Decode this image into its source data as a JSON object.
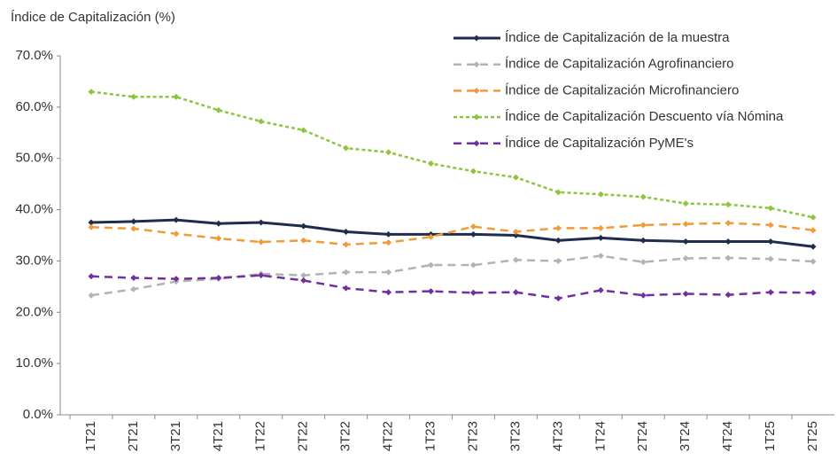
{
  "chart_data": {
    "type": "line",
    "y_axis_title": "Índice de Capitalización (%)",
    "categories": [
      "1T21",
      "2T21",
      "3T21",
      "4T21",
      "1T22",
      "2T22",
      "3T22",
      "4T22",
      "1T23",
      "2T23",
      "3T23",
      "4T23",
      "1T24",
      "2T24",
      "3T24",
      "4T24",
      "1T25",
      "2T25"
    ],
    "series": [
      {
        "name": "Índice de Capitalización de la muestra",
        "color": "#1f2d4d",
        "line_style": "solid",
        "values": [
          37.5,
          37.7,
          38.0,
          37.3,
          37.5,
          36.8,
          35.7,
          35.2,
          35.2,
          35.2,
          35.0,
          34.0,
          34.5,
          34.0,
          33.8,
          33.8,
          33.8,
          32.8
        ]
      },
      {
        "name": "Índice de Capitalización Agrofinanciero",
        "color": "#b3b3b3",
        "line_style": "dashed",
        "values": [
          23.3,
          24.5,
          26.0,
          26.5,
          27.5,
          27.2,
          27.8,
          27.8,
          29.2,
          29.2,
          30.2,
          30.0,
          31.0,
          29.8,
          30.5,
          30.6,
          30.4,
          29.9
        ]
      },
      {
        "name": "Índice de Capitalización Microfinanciero",
        "color": "#f39a38",
        "line_style": "dashed",
        "values": [
          36.6,
          36.3,
          35.3,
          34.4,
          33.7,
          34.0,
          33.2,
          33.6,
          34.7,
          36.7,
          35.7,
          36.4,
          36.4,
          37.0,
          37.2,
          37.4,
          37.0,
          36.0
        ]
      },
      {
        "name": "Índice de Capitalización Descuento vía Nómina",
        "color": "#8cc63f",
        "line_style": "dotted",
        "values": [
          63.0,
          62.0,
          62.0,
          59.4,
          57.2,
          55.5,
          52.0,
          51.2,
          49.0,
          47.5,
          46.3,
          43.4,
          43.0,
          42.5,
          41.2,
          41.0,
          40.3,
          38.5
        ]
      },
      {
        "name": "Índice de Capitalización PyME's",
        "color": "#7030a0",
        "line_style": "dashed",
        "values": [
          27.0,
          26.7,
          26.5,
          26.7,
          27.2,
          26.2,
          24.7,
          23.9,
          24.1,
          23.8,
          23.9,
          22.7,
          24.3,
          23.3,
          23.6,
          23.4,
          23.9,
          23.8
        ]
      }
    ],
    "ylim": [
      0,
      70
    ],
    "yticks": [
      {
        "value": 0,
        "label": "0.0%"
      },
      {
        "value": 10,
        "label": "10.0%"
      },
      {
        "value": 20,
        "label": "20.0%"
      },
      {
        "value": 30,
        "label": "30.0%"
      },
      {
        "value": 40,
        "label": "40.0%"
      },
      {
        "value": 50,
        "label": "50.0%"
      },
      {
        "value": 60,
        "label": "60.0%"
      },
      {
        "value": 70,
        "label": "70.0%"
      }
    ],
    "grid": false,
    "legend_position": "top-right"
  }
}
